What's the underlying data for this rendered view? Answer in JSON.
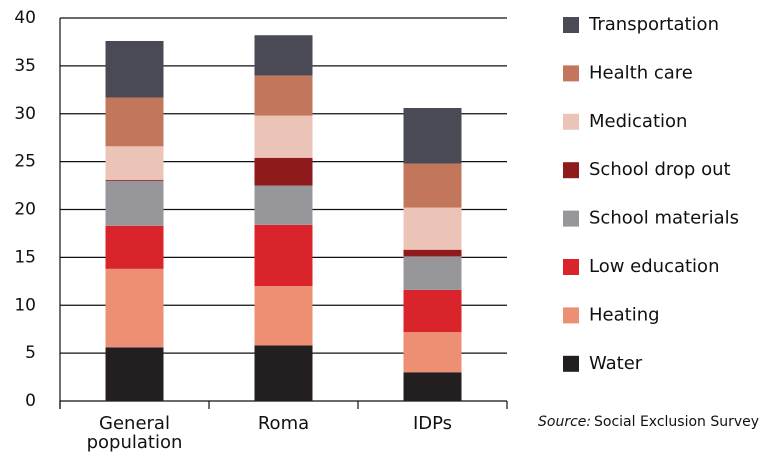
{
  "chart_data": {
    "type": "stacked_bar",
    "categories": [
      "General population",
      "Roma",
      "IDPs"
    ],
    "series": [
      {
        "name": "Water",
        "color": "#231f20",
        "values": [
          5.6,
          5.8,
          3.0
        ]
      },
      {
        "name": "Heating",
        "color": "#ec8f73",
        "values": [
          8.2,
          6.2,
          4.2
        ]
      },
      {
        "name": "Low education",
        "color": "#d9242b",
        "values": [
          4.5,
          6.4,
          4.4
        ]
      },
      {
        "name": "School materials",
        "color": "#97979b",
        "values": [
          4.7,
          4.1,
          3.5
        ]
      },
      {
        "name": "School drop out",
        "color": "#8e1a1b",
        "values": [
          0.1,
          2.9,
          0.7
        ]
      },
      {
        "name": "Medication",
        "color": "#ecc4b7",
        "values": [
          3.5,
          4.4,
          4.4
        ]
      },
      {
        "name": "Health care",
        "color": "#c2765c",
        "values": [
          5.1,
          4.2,
          4.6
        ]
      },
      {
        "name": "Transportation",
        "color": "#4a4a55",
        "values": [
          5.9,
          4.2,
          5.8
        ]
      }
    ],
    "ylim": [
      0,
      40
    ],
    "yticks": [
      0,
      5,
      10,
      15,
      20,
      25,
      30,
      35,
      40
    ],
    "grid": true,
    "legend": "right",
    "source_label": "Source:",
    "source": "Social Exclusion Survey"
  }
}
